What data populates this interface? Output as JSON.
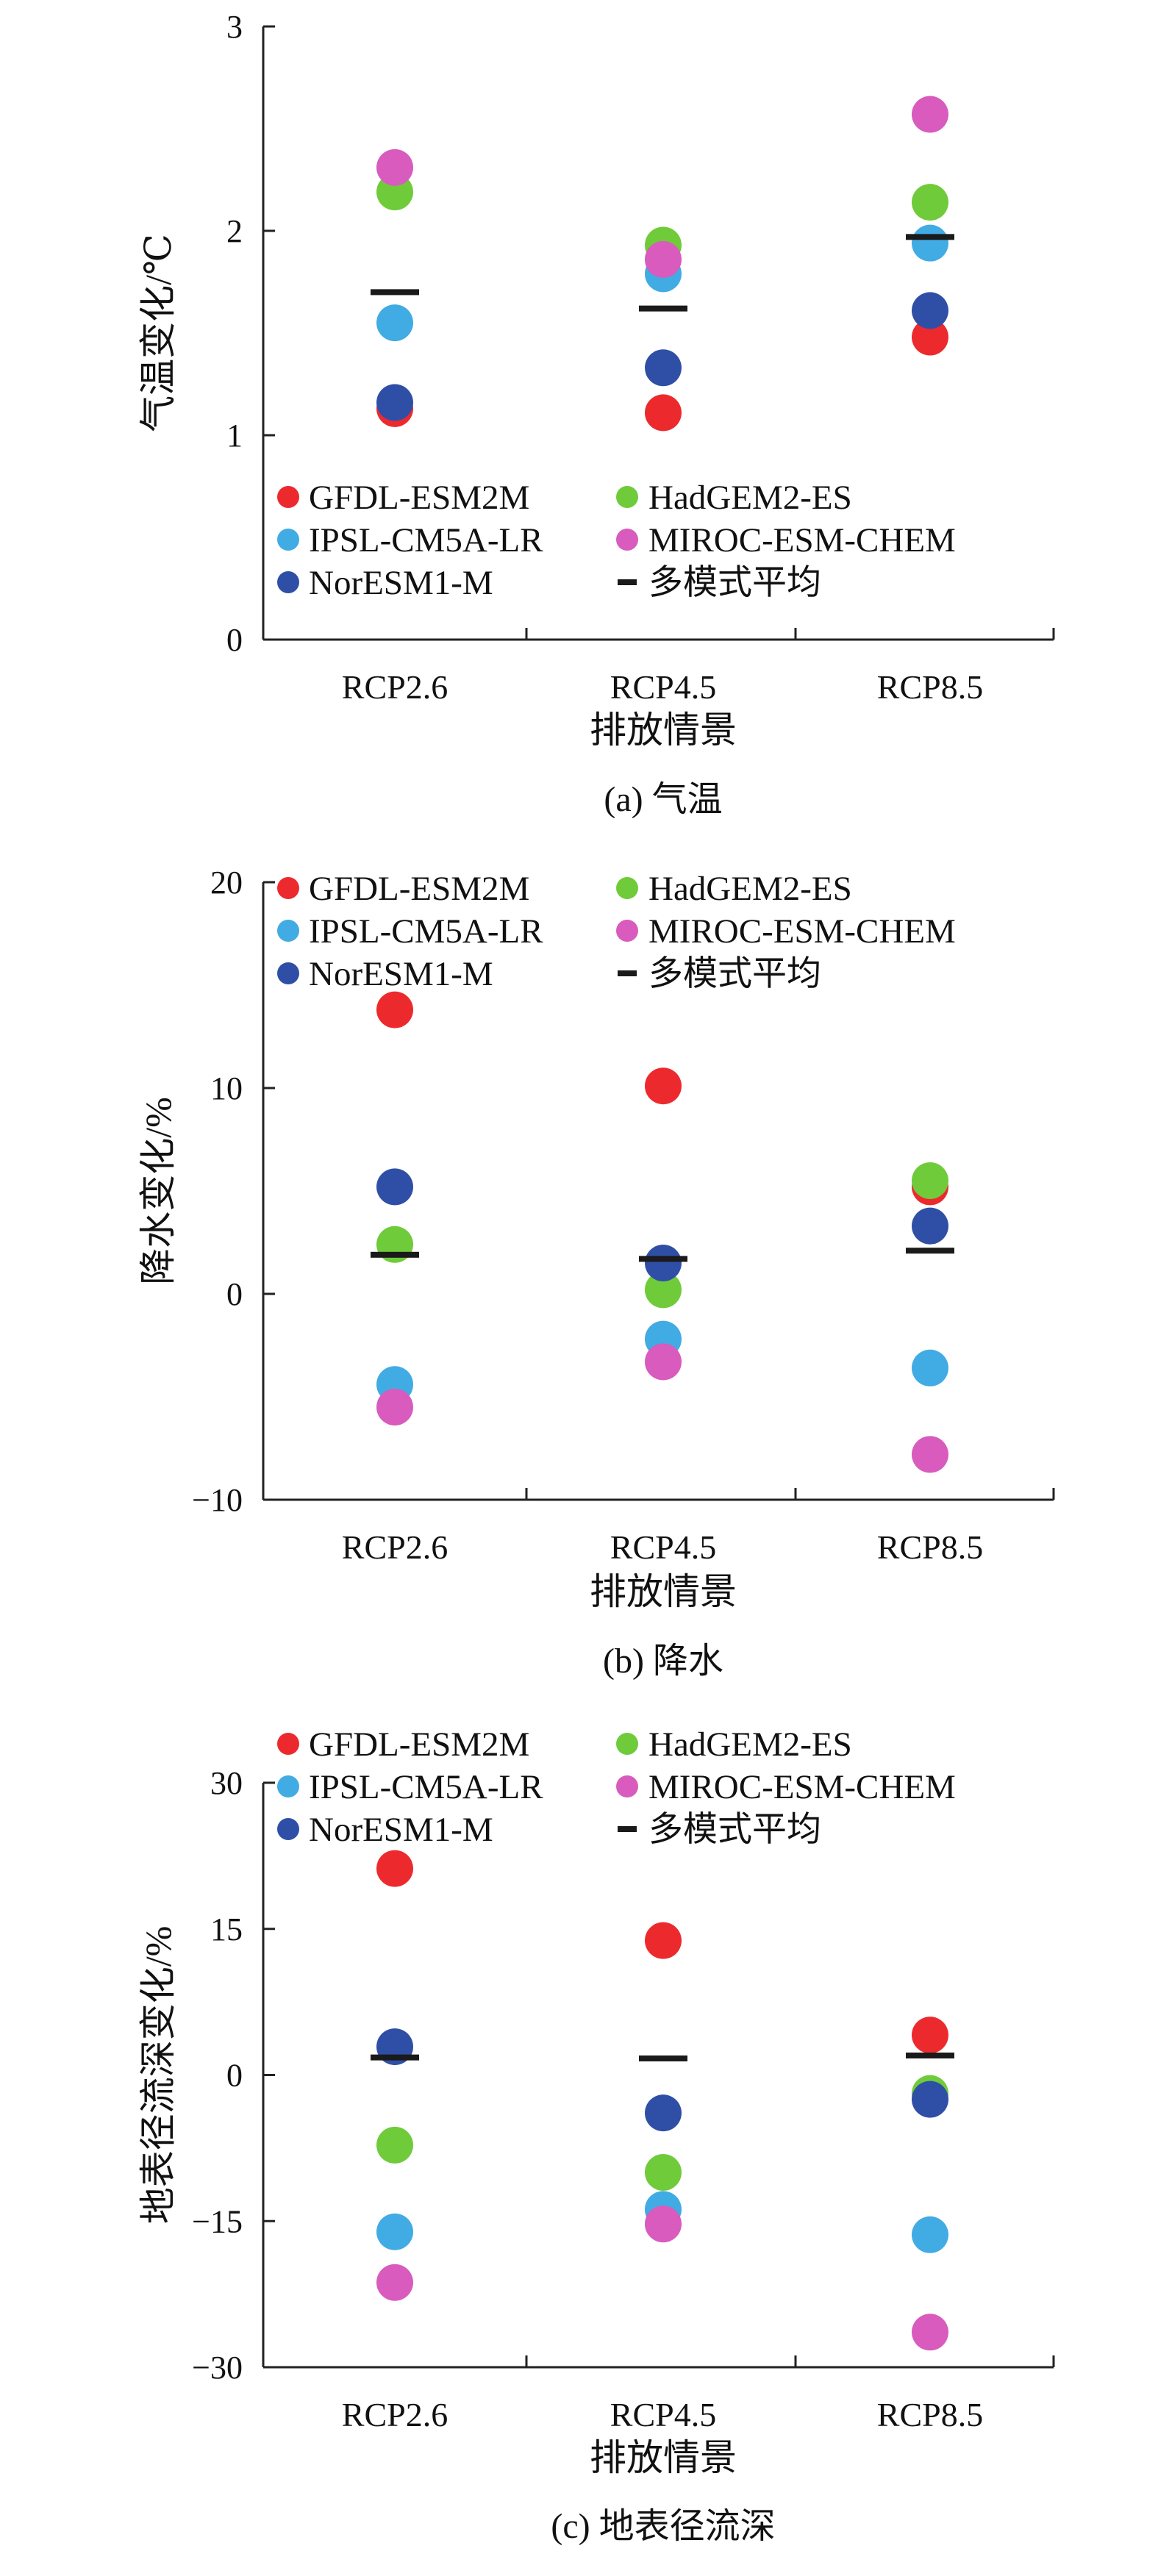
{
  "colors": {
    "GFDL-ESM2M": "#ec2a2e",
    "HadGEM2-ES": "#6fcb3a",
    "IPSL-CM5A-LR": "#41abe3",
    "MIROC-ESM-CHEM": "#d85bbd",
    "NorESM1-M": "#2f4fa6",
    "多模式平均": "#1a1a1a"
  },
  "legend_entries": [
    "GFDL-ESM2M",
    "HadGEM2-ES",
    "IPSL-CM5A-LR",
    "MIROC-ESM-CHEM",
    "NorESM1-M",
    "多模式平均"
  ],
  "chart_data": [
    {
      "type": "scatter",
      "caption": "(a) 气温",
      "xlabel": "排放情景",
      "ylabel": "气温变化/℃",
      "categories": [
        "RCP2.6",
        "RCP4.5",
        "RCP8.5"
      ],
      "ylim": [
        0,
        3
      ],
      "yticks": [
        0,
        1,
        2,
        3
      ],
      "ytick_labels": [
        "0",
        "1",
        "2",
        "3"
      ],
      "legend_position": "bottom-left",
      "grid": false,
      "series": [
        {
          "name": "GFDL-ESM2M",
          "values": [
            1.13,
            1.11,
            1.48
          ]
        },
        {
          "name": "HadGEM2-ES",
          "values": [
            2.19,
            1.93,
            2.14
          ]
        },
        {
          "name": "IPSL-CM5A-LR",
          "values": [
            1.55,
            1.79,
            1.94
          ]
        },
        {
          "name": "MIROC-ESM-CHEM",
          "values": [
            2.31,
            1.86,
            2.57
          ]
        },
        {
          "name": "NorESM1-M",
          "values": [
            1.16,
            1.33,
            1.61
          ]
        },
        {
          "name": "多模式平均",
          "values": [
            1.7,
            1.62,
            1.97
          ]
        }
      ]
    },
    {
      "type": "scatter",
      "caption": "(b) 降水",
      "xlabel": "排放情景",
      "ylabel": "降水变化/%",
      "categories": [
        "RCP2.6",
        "RCP4.5",
        "RCP8.5"
      ],
      "ylim": [
        -10,
        20
      ],
      "yticks": [
        -10,
        0,
        10,
        20
      ],
      "ytick_labels": [
        "−10",
        "0",
        "10",
        "20"
      ],
      "legend_position": "top-left",
      "grid": false,
      "series": [
        {
          "name": "GFDL-ESM2M",
          "values": [
            13.8,
            10.1,
            5.2
          ]
        },
        {
          "name": "HadGEM2-ES",
          "values": [
            2.4,
            0.2,
            5.5
          ]
        },
        {
          "name": "IPSL-CM5A-LR",
          "values": [
            -4.4,
            -2.2,
            -3.6
          ]
        },
        {
          "name": "MIROC-ESM-CHEM",
          "values": [
            -5.5,
            -3.3,
            -7.8
          ]
        },
        {
          "name": "NorESM1-M",
          "values": [
            5.2,
            1.5,
            3.3
          ]
        },
        {
          "name": "多模式平均",
          "values": [
            1.9,
            1.7,
            2.1
          ]
        }
      ]
    },
    {
      "type": "scatter",
      "caption": "(c) 地表径流深",
      "xlabel": "排放情景",
      "ylabel": "地表径流深变化/%",
      "categories": [
        "RCP2.6",
        "RCP4.5",
        "RCP8.5"
      ],
      "ylim": [
        -30,
        30
      ],
      "yticks": [
        -30,
        -15,
        0,
        15,
        30
      ],
      "ytick_labels": [
        "−30",
        "−15",
        "0",
        "15",
        "30"
      ],
      "legend_position": "top-left",
      "grid": false,
      "series": [
        {
          "name": "GFDL-ESM2M",
          "values": [
            21.2,
            13.8,
            4.1
          ]
        },
        {
          "name": "HadGEM2-ES",
          "values": [
            -7.2,
            -10.0,
            -1.9
          ]
        },
        {
          "name": "IPSL-CM5A-LR",
          "values": [
            -16.1,
            -13.8,
            -16.4
          ]
        },
        {
          "name": "MIROC-ESM-CHEM",
          "values": [
            -21.3,
            -15.3,
            -26.4
          ]
        },
        {
          "name": "NorESM1-M",
          "values": [
            2.9,
            -3.9,
            -2.5
          ]
        },
        {
          "name": "多模式平均",
          "values": [
            1.8,
            1.7,
            2.0
          ]
        }
      ]
    }
  ]
}
